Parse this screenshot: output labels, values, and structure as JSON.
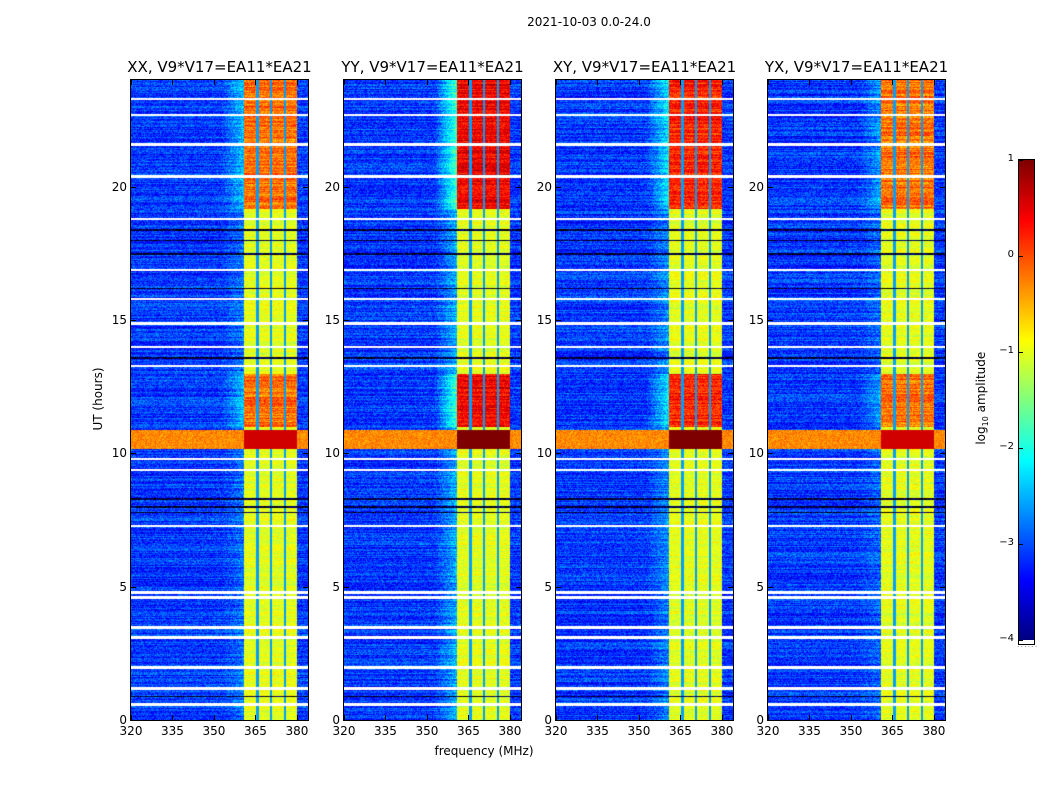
{
  "chart_data": {
    "type": "heatmap",
    "title": "2021-10-03 0.0-24.0",
    "xlabel": "frequency (MHz)",
    "ylabel": "UT (hours)",
    "xlim": [
      320,
      384
    ],
    "ylim": [
      0,
      24
    ],
    "xticks": [
      320,
      335,
      350,
      365,
      380
    ],
    "yticks": [
      0,
      5,
      10,
      15,
      20
    ],
    "colormap": "jet",
    "colorbar": {
      "label_main": "log",
      "label_sub": "10",
      "label_rest": " amplitude",
      "range": [
        -4,
        1
      ],
      "ticks": [
        1,
        0,
        -1,
        -2,
        -3,
        -4
      ],
      "tick_labels": [
        "1",
        "0",
        "−1",
        "−2",
        "−3",
        "−4"
      ],
      "extra": "......"
    },
    "panels": [
      {
        "title": "XX, V9*V17=EA11*EA21",
        "band_peak": 0.1,
        "left_glow": 0.5
      },
      {
        "title": "YY, V9*V17=EA11*EA21",
        "band_peak": 0.7,
        "left_glow": 1.0
      },
      {
        "title": "XY, V9*V17=EA11*EA21",
        "band_peak": 0.5,
        "left_glow": 0.7
      },
      {
        "title": "YX, V9*V17=EA11*EA21",
        "band_peak": 0.1,
        "left_glow": 0.4
      }
    ],
    "background_level": -3.1,
    "rfi_band_mhz": [
      360.5,
      380
    ],
    "rfi_band_level": -1.0,
    "rfi_band_gaps_mhz": [
      365.5,
      370.5,
      375.5
    ],
    "strong_intervals_hours": [
      [
        11.0,
        13.0
      ],
      [
        19.2,
        24.0
      ]
    ],
    "broadband_burst_hours": [
      10.2,
      10.9
    ],
    "flagged_hours_white": [
      0.6,
      1.2,
      2.0,
      3.1,
      3.5,
      4.6,
      4.8,
      7.3,
      9.4,
      9.8,
      13.3,
      14.0,
      14.9,
      15.8,
      16.9,
      18.8,
      20.4,
      21.6,
      22.7,
      23.3
    ],
    "flagged_hours_black": [
      0.9,
      7.8,
      8.0,
      8.3,
      13.6,
      16.2,
      17.5,
      18.0,
      18.4
    ]
  }
}
